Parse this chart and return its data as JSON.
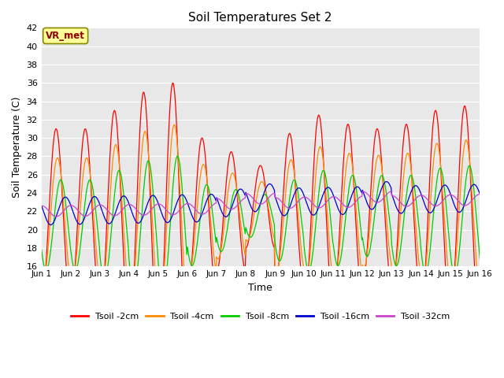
{
  "title": "Soil Temperatures Set 2",
  "xlabel": "Time",
  "ylabel": "Soil Temperature (C)",
  "ylim": [
    16,
    42
  ],
  "annotation": "VR_met",
  "legend": [
    "Tsoil -2cm",
    "Tsoil -4cm",
    "Tsoil -8cm",
    "Tsoil -16cm",
    "Tsoil -32cm"
  ],
  "colors": [
    "#FF0000",
    "#FF8C00",
    "#00CC00",
    "#0000CD",
    "#CC44CC"
  ],
  "xtick_labels": [
    "Jun 1",
    "Jun 2",
    "Jun 3",
    "Jun 4",
    "Jun 5",
    "Jun 6",
    "Jun 7",
    "Jun 8",
    "Jun 9",
    "Jun 10",
    "Jun 11",
    "Jun 12",
    "Jun 13",
    "Jun 14",
    "Jun 15",
    "Jun 16"
  ],
  "background_color": "#FFFFFF",
  "plot_bg_color": "#E8E8E8",
  "n_days": 16,
  "pts_per_day": 48,
  "env_2": [
    9.5,
    9.5,
    11.5,
    13.5,
    14.5,
    8.5,
    6.5,
    4.5,
    8.5,
    10.5,
    9.5,
    8.5,
    9.5,
    11.0,
    11.5,
    12.5
  ],
  "base_2": [
    21.5,
    21.5,
    21.5,
    21.5,
    21.5,
    21.5,
    22.0,
    22.5,
    22.0,
    22.0,
    22.0,
    22.5,
    22.0,
    22.0,
    22.0,
    22.0
  ]
}
